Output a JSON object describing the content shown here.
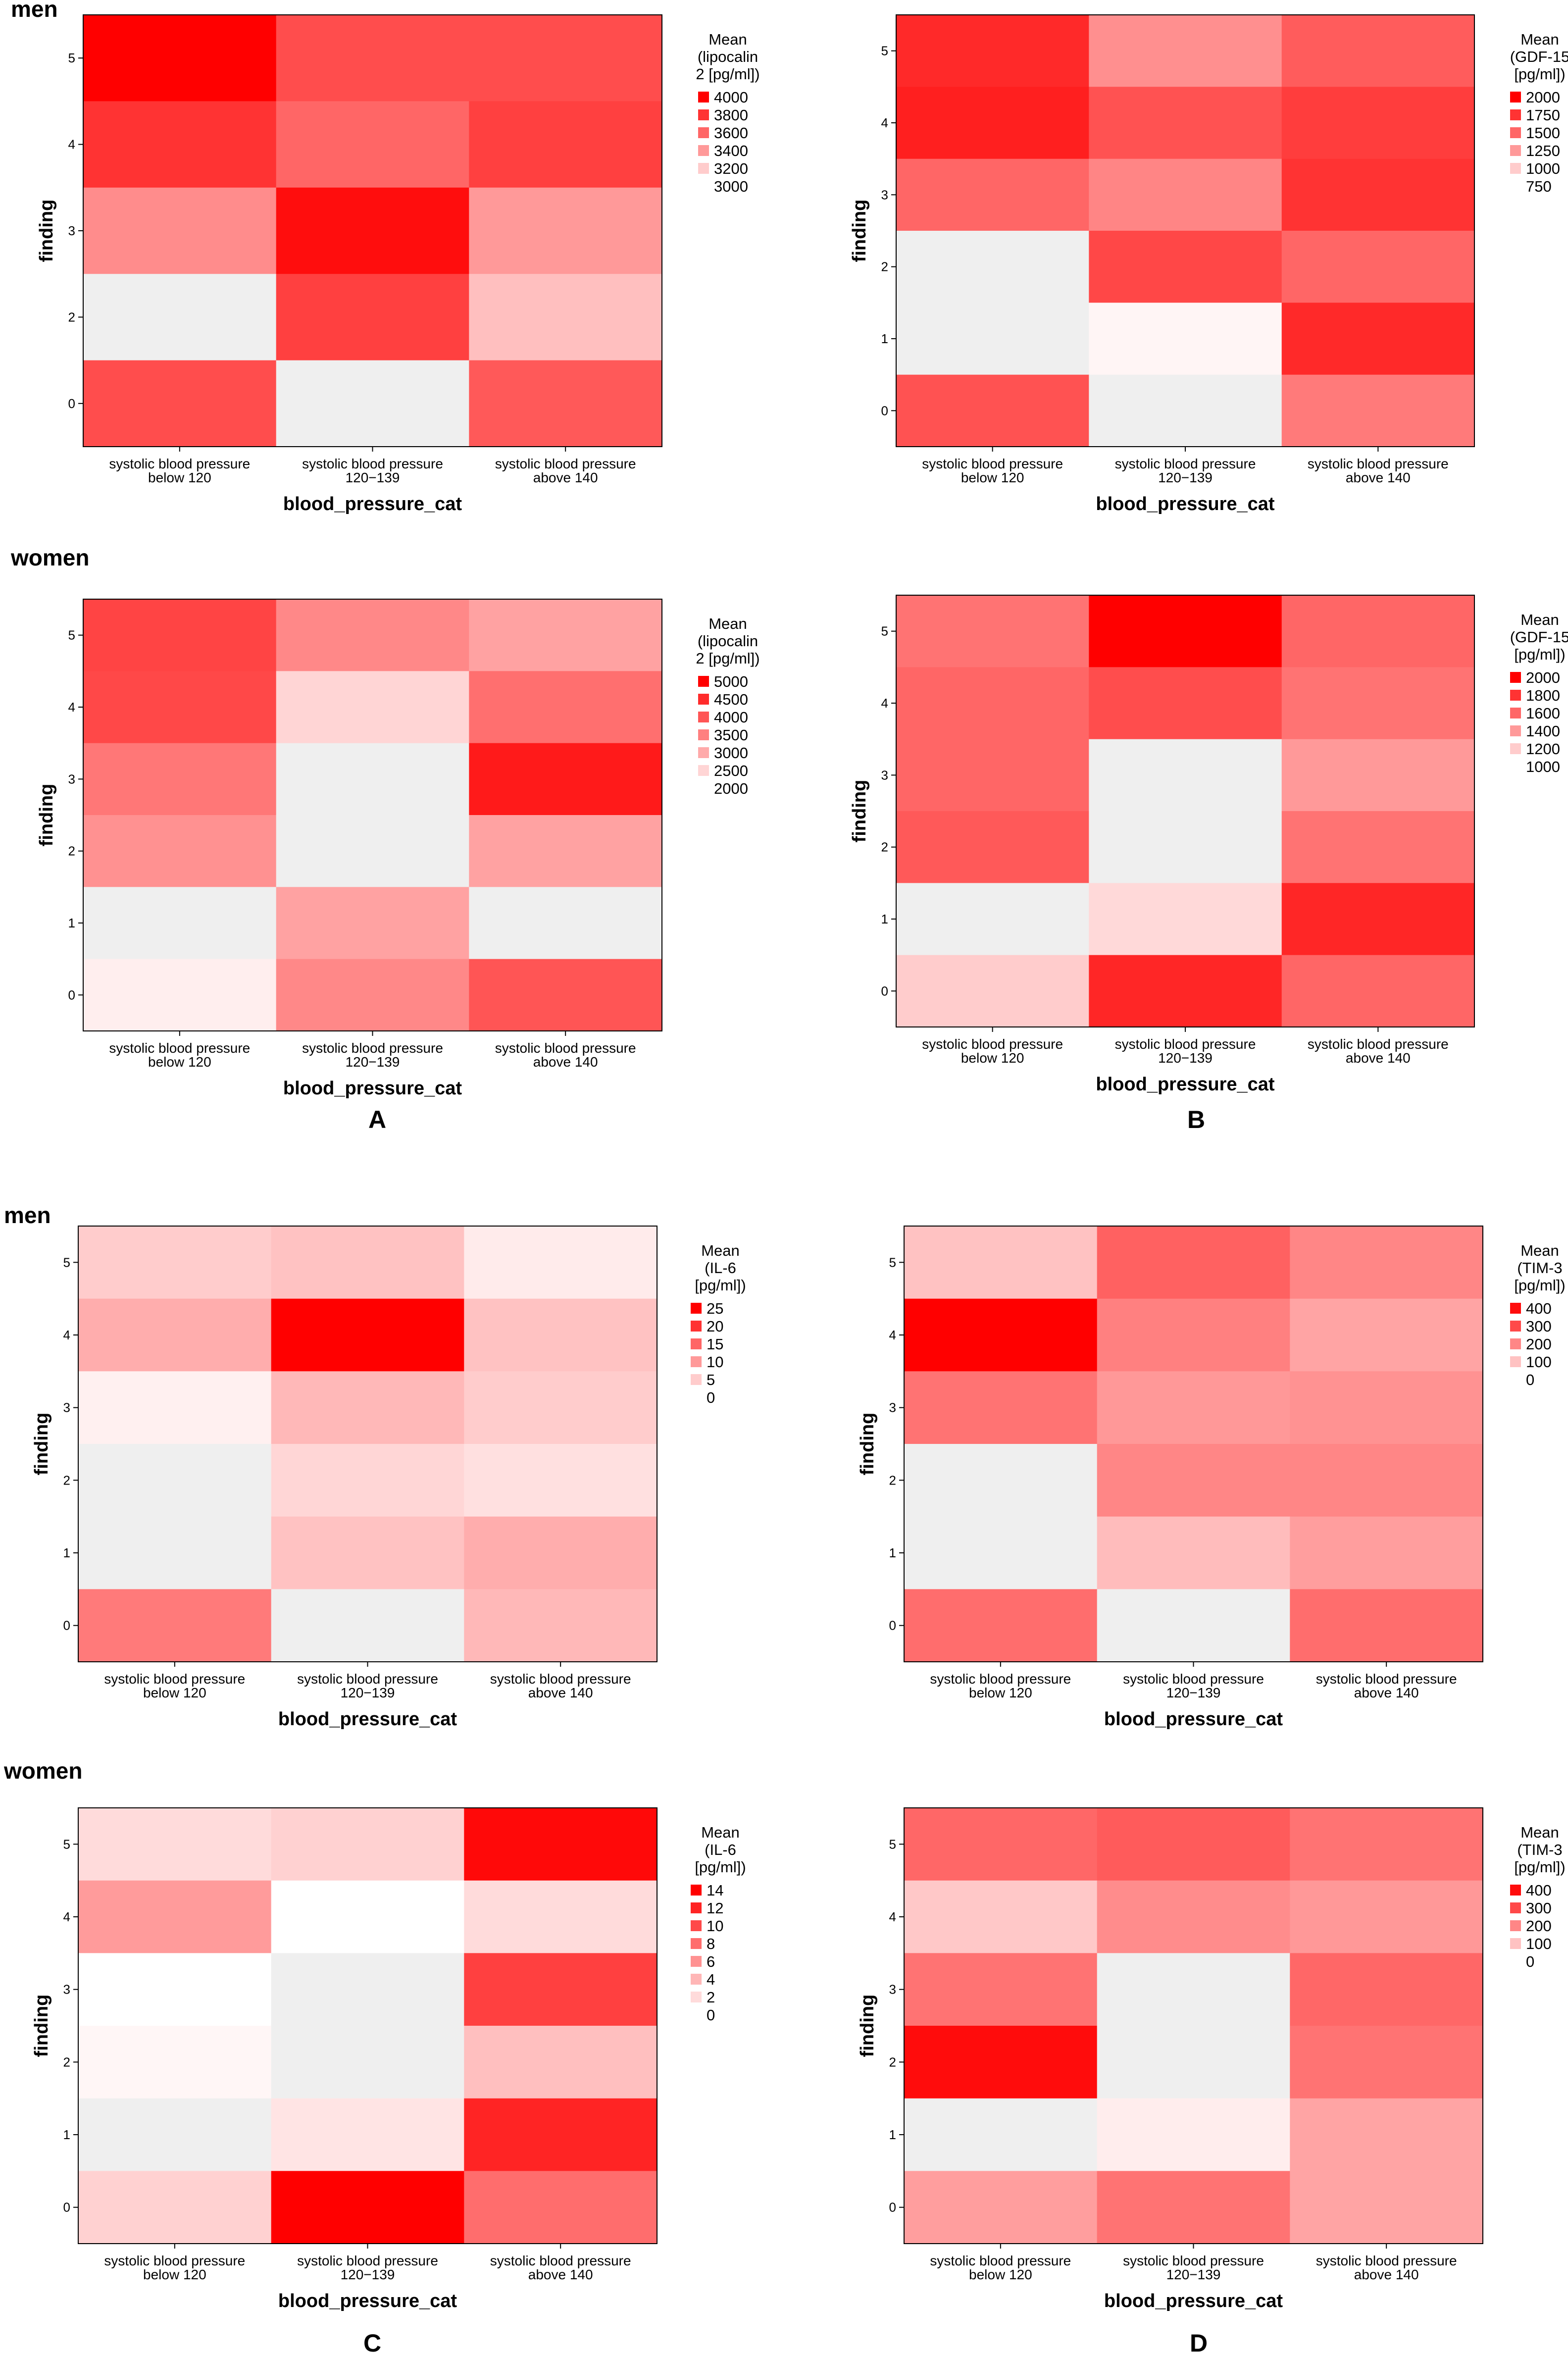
{
  "figure": {
    "group_labels": [
      "men",
      "women"
    ],
    "panel_letters": [
      "A",
      "B",
      "C",
      "D"
    ]
  },
  "colors": {
    "missing": "#efefef",
    "high": "#ff0000",
    "low": "#ffffff",
    "axis": "#000000"
  },
  "chart_data": [
    {
      "type": "heatmap",
      "panel": "A",
      "group": "men",
      "group_label": "men",
      "xlabel": "blood_pressure_cat",
      "ylabel": "finding",
      "categories": [
        "systolic blood pressure below 120",
        "systolic blood pressure 120−139",
        "systolic blood pressure above 140"
      ],
      "cat_lines": [
        [
          "systolic blood pressure",
          "below 120"
        ],
        [
          "systolic blood pressure",
          "120−139"
        ],
        [
          "systolic blood pressure",
          "above 140"
        ]
      ],
      "rows": [
        "5",
        "4",
        "3",
        "2",
        "0"
      ],
      "values": [
        [
          4000,
          3700,
          3700
        ],
        [
          3800,
          3600,
          3750
        ],
        [
          3450,
          3950,
          3400
        ],
        [
          null,
          3750,
          3250
        ],
        [
          3700,
          null,
          3650
        ]
      ],
      "legend_title": [
        "Mean",
        "(lipocalin",
        "2 [pg/ml])"
      ],
      "legend_ticks": [
        4000,
        3800,
        3600,
        3400,
        3200,
        3000
      ],
      "vmin": 3000,
      "vmax": 4000
    },
    {
      "type": "heatmap",
      "panel": "B",
      "group": "men",
      "group_label": null,
      "xlabel": "blood_pressure_cat",
      "ylabel": "finding",
      "categories": [
        "systolic blood pressure below 120",
        "systolic blood pressure 120−139",
        "systolic blood pressure above 140"
      ],
      "cat_lines": [
        [
          "systolic blood pressure",
          "below 120"
        ],
        [
          "systolic blood pressure",
          "120−139"
        ],
        [
          "systolic blood pressure",
          "above 140"
        ]
      ],
      "rows": [
        "5",
        "4",
        "3",
        "2",
        "1",
        "0"
      ],
      "values": [
        [
          1800,
          1300,
          1550
        ],
        [
          1850,
          1600,
          1700
        ],
        [
          1500,
          1350,
          1750
        ],
        [
          null,
          1650,
          1500
        ],
        [
          null,
          800,
          1800
        ],
        [
          1600,
          null,
          1400
        ]
      ],
      "legend_title": [
        "Mean",
        "(GDF-15",
        "[pg/ml])"
      ],
      "legend_ticks": [
        2000,
        1750,
        1500,
        1250,
        1000,
        750
      ],
      "vmin": 750,
      "vmax": 2000
    },
    {
      "type": "heatmap",
      "panel": "A",
      "group": "women",
      "group_label": "women",
      "xlabel": "blood_pressure_cat",
      "ylabel": "finding",
      "categories": [
        "systolic blood pressure below 120",
        "systolic blood pressure 120−139",
        "systolic blood pressure above 140"
      ],
      "cat_lines": [
        [
          "systolic blood pressure",
          "below 120"
        ],
        [
          "systolic blood pressure",
          "120−139"
        ],
        [
          "systolic blood pressure",
          "above 140"
        ]
      ],
      "rows": [
        "5",
        "4",
        "3",
        "2",
        "1",
        "0"
      ],
      "values": [
        [
          4200,
          3400,
          3100
        ],
        [
          4150,
          2500,
          3700
        ],
        [
          3600,
          null,
          4700
        ],
        [
          3300,
          null,
          3100
        ],
        [
          null,
          3100,
          null
        ],
        [
          2200,
          3400,
          4000
        ]
      ],
      "legend_title": [
        "Mean",
        "(lipocalin",
        "2 [pg/ml])"
      ],
      "legend_ticks": [
        5000,
        4500,
        4000,
        3500,
        3000,
        2500,
        2000
      ],
      "vmin": 2000,
      "vmax": 5000
    },
    {
      "type": "heatmap",
      "panel": "B",
      "group": "women",
      "group_label": null,
      "xlabel": "blood_pressure_cat",
      "ylabel": "finding",
      "categories": [
        "systolic blood pressure below 120",
        "systolic blood pressure 120−139",
        "systolic blood pressure above 140"
      ],
      "cat_lines": [
        [
          "systolic blood pressure",
          "below 120"
        ],
        [
          "systolic blood pressure",
          "120−139"
        ],
        [
          "systolic blood pressure",
          "above 140"
        ]
      ],
      "rows": [
        "5",
        "4",
        "3",
        "2",
        "1",
        "0"
      ],
      "values": [
        [
          1550,
          2000,
          1600
        ],
        [
          1600,
          1700,
          1550
        ],
        [
          1600,
          null,
          1400
        ],
        [
          1650,
          null,
          1550
        ],
        [
          null,
          1150,
          1850
        ],
        [
          1200,
          1850,
          1600
        ]
      ],
      "legend_title": [
        "Mean",
        "(GDF-15",
        "[pg/ml])"
      ],
      "legend_ticks": [
        2000,
        1800,
        1600,
        1400,
        1200,
        1000
      ],
      "vmin": 1000,
      "vmax": 2000
    },
    {
      "type": "heatmap",
      "panel": "C",
      "group": "men",
      "group_label": "men",
      "xlabel": "blood_pressure_cat",
      "ylabel": "finding",
      "categories": [
        "systolic blood pressure below 120",
        "systolic blood pressure 120−139",
        "systolic blood pressure above 140"
      ],
      "cat_lines": [
        [
          "systolic blood pressure",
          "below 120"
        ],
        [
          "systolic blood pressure",
          "120−139"
        ],
        [
          "systolic blood pressure",
          "above 140"
        ]
      ],
      "rows": [
        "5",
        "4",
        "3",
        "2",
        "1",
        "0"
      ],
      "values": [
        [
          5,
          6,
          2
        ],
        [
          8,
          25,
          6
        ],
        [
          1.5,
          7,
          5
        ],
        [
          null,
          4,
          3
        ],
        [
          null,
          6,
          8
        ],
        [
          13,
          null,
          7
        ]
      ],
      "legend_title": [
        "Mean",
        "(IL-6",
        "[pg/ml])"
      ],
      "legend_ticks": [
        25,
        20,
        15,
        10,
        5,
        0
      ],
      "vmin": 0,
      "vmax": 25
    },
    {
      "type": "heatmap",
      "panel": "D",
      "group": "men",
      "group_label": null,
      "xlabel": "blood_pressure_cat",
      "ylabel": "finding",
      "categories": [
        "systolic blood pressure below 120",
        "systolic blood pressure 120−139",
        "systolic blood pressure above 140"
      ],
      "cat_lines": [
        [
          "systolic blood pressure",
          "below 120"
        ],
        [
          "systolic blood pressure",
          "120−139"
        ],
        [
          "systolic blood pressure",
          "above 140"
        ]
      ],
      "rows": [
        "5",
        "4",
        "3",
        "2",
        "1",
        "0"
      ],
      "values": [
        [
          100,
          260,
          200
        ],
        [
          420,
          210,
          150
        ],
        [
          230,
          170,
          180
        ],
        [
          null,
          200,
          200
        ],
        [
          null,
          110,
          160
        ],
        [
          240,
          null,
          240
        ]
      ],
      "legend_title": [
        "Mean",
        "(TIM-3",
        "[pg/ml])"
      ],
      "legend_ticks": [
        400,
        300,
        200,
        100,
        0
      ],
      "vmin": 0,
      "vmax": 420
    },
    {
      "type": "heatmap",
      "panel": "C",
      "group": "women",
      "group_label": "women",
      "xlabel": "blood_pressure_cat",
      "ylabel": "finding",
      "categories": [
        "systolic blood pressure below 120",
        "systolic blood pressure 120−139",
        "systolic blood pressure above 140"
      ],
      "cat_lines": [
        [
          "systolic blood pressure",
          "below 120"
        ],
        [
          "systolic blood pressure",
          "120−139"
        ],
        [
          "systolic blood pressure",
          "above 140"
        ]
      ],
      "rows": [
        "5",
        "4",
        "3",
        "2",
        "1",
        "0"
      ],
      "values": [
        [
          2,
          2.5,
          13.5
        ],
        [
          5.5,
          0,
          2
        ],
        [
          0,
          null,
          10.5
        ],
        [
          0.5,
          null,
          3.5
        ],
        [
          null,
          1.5,
          12
        ],
        [
          2.5,
          14,
          8
        ]
      ],
      "legend_title": [
        "Mean",
        "(IL-6",
        "[pg/ml])"
      ],
      "legend_ticks": [
        14,
        12,
        10,
        8,
        6,
        4,
        2,
        0
      ],
      "vmin": 0,
      "vmax": 14
    },
    {
      "type": "heatmap",
      "panel": "D",
      "group": "women",
      "group_label": null,
      "xlabel": "blood_pressure_cat",
      "ylabel": "finding",
      "categories": [
        "systolic blood pressure below 120",
        "systolic blood pressure 120−139",
        "systolic blood pressure above 140"
      ],
      "cat_lines": [
        [
          "systolic blood pressure",
          "below 120"
        ],
        [
          "systolic blood pressure",
          "120−139"
        ],
        [
          "systolic blood pressure",
          "above 140"
        ]
      ],
      "rows": [
        "5",
        "4",
        "3",
        "2",
        "1",
        "0"
      ],
      "values": [
        [
          250,
          270,
          230
        ],
        [
          90,
          190,
          170
        ],
        [
          230,
          null,
          250
        ],
        [
          400,
          null,
          230
        ],
        [
          null,
          30,
          150
        ],
        [
          160,
          230,
          150
        ]
      ],
      "legend_title": [
        "Mean",
        "(TIM-3",
        "[pg/ml])"
      ],
      "legend_ticks": [
        400,
        300,
        200,
        100,
        0
      ],
      "vmin": 0,
      "vmax": 420
    }
  ]
}
